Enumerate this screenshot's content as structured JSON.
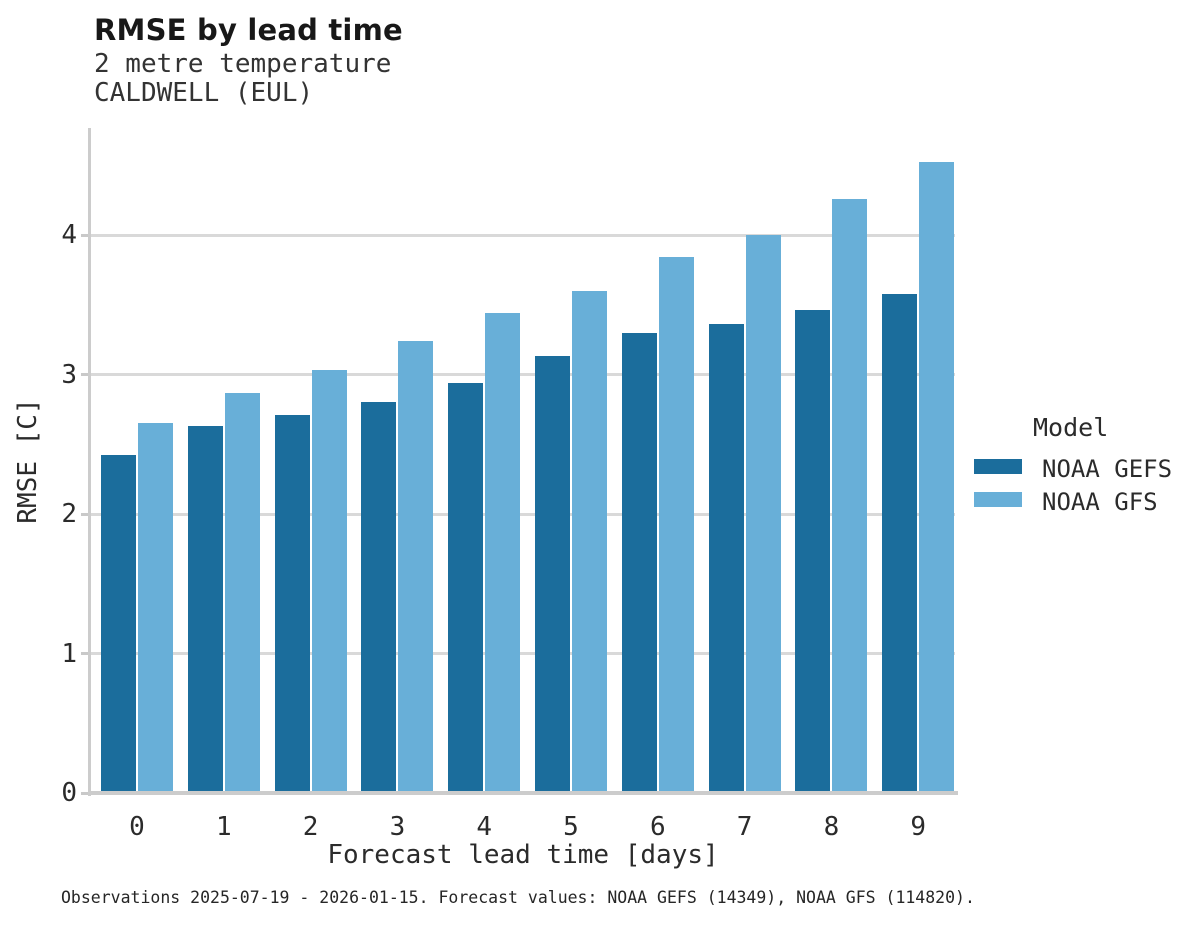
{
  "title": "RMSE by lead time",
  "subtitle": {
    "line1": "2 metre temperature",
    "line2": "CALDWELL (EUL)"
  },
  "footer": "Observations 2025-07-19 - 2026-01-15. Forecast values: NOAA GEFS (14349), NOAA GFS (114820).",
  "legend": {
    "title": "Model",
    "items": [
      {
        "label": "NOAA GEFS",
        "color": "#1b6d9c"
      },
      {
        "label": "NOAA GFS",
        "color": "#68afd8"
      }
    ]
  },
  "colors": {
    "gefs_bar": "#1b6d9c",
    "gfs_bar": "#68afd8",
    "gridline": "#d9d9d9",
    "axis": "#cccccc",
    "text": "#2b2b2b"
  },
  "chart_data": {
    "type": "bar",
    "title": "RMSE by lead time",
    "subtitle": [
      "2 metre temperature",
      "CALDWELL (EUL)"
    ],
    "xlabel": "Forecast lead time [days]",
    "ylabel": "RMSE [C]",
    "categories": [
      "0",
      "1",
      "2",
      "3",
      "4",
      "5",
      "6",
      "7",
      "8",
      "9"
    ],
    "series": [
      {
        "name": "NOAA GEFS",
        "color": "#1b6d9c",
        "values": [
          2.42,
          2.63,
          2.71,
          2.8,
          2.94,
          3.13,
          3.3,
          3.36,
          3.46,
          3.58
        ]
      },
      {
        "name": "NOAA GFS",
        "color": "#68afd8",
        "values": [
          2.65,
          2.87,
          3.03,
          3.24,
          3.44,
          3.6,
          3.84,
          4.0,
          4.26,
          4.52
        ]
      }
    ],
    "ylim": [
      0,
      4.77
    ],
    "yticks": [
      0,
      1,
      2,
      3,
      4
    ],
    "grid": true,
    "legend_position": "right",
    "caption": "Observations 2025-07-19 - 2026-01-15. Forecast values: NOAA GEFS (14349), NOAA GFS (114820)."
  }
}
